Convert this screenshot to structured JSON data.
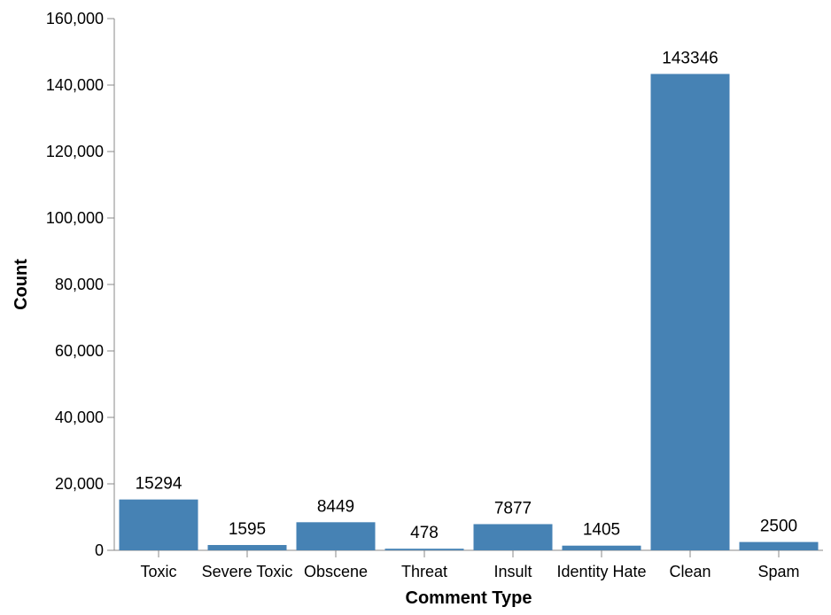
{
  "chart_data": {
    "type": "bar",
    "categories": [
      "Toxic",
      "Severe Toxic",
      "Obscene",
      "Threat",
      "Insult",
      "Identity Hate",
      "Clean",
      "Spam"
    ],
    "values": [
      15294,
      1595,
      8449,
      478,
      7877,
      1405,
      143346,
      2500
    ],
    "value_labels": [
      "15294",
      "1595",
      "8449",
      "478",
      "7877",
      "1405",
      "143346",
      "2500"
    ],
    "title": "",
    "xlabel": "Comment Type",
    "ylabel": "Count",
    "ylim": [
      0,
      160000
    ],
    "yticks": [
      0,
      20000,
      40000,
      60000,
      80000,
      100000,
      120000,
      140000,
      160000
    ],
    "ytick_labels": [
      "0",
      "20,000",
      "40,000",
      "60,000",
      "80,000",
      "100,000",
      "120,000",
      "140,000",
      "160,000"
    ],
    "grid": false,
    "legend": "none",
    "bar_color": "#4682b4"
  }
}
